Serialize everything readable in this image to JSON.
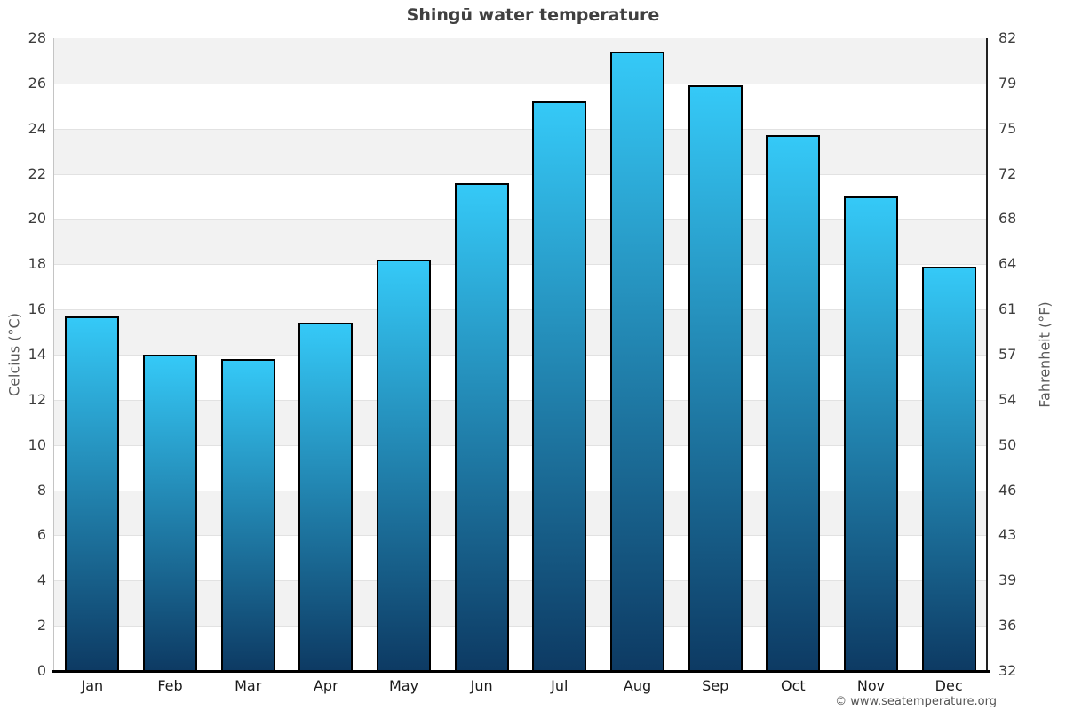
{
  "page": {
    "footer": "© www.seatemperature.org"
  },
  "chart_data": {
    "type": "bar",
    "title": "Shingū water temperature",
    "categories": [
      "Jan",
      "Feb",
      "Mar",
      "Apr",
      "May",
      "Jun",
      "Jul",
      "Aug",
      "Sep",
      "Oct",
      "Nov",
      "Dec"
    ],
    "values": [
      15.7,
      14.0,
      13.8,
      15.4,
      18.2,
      21.6,
      25.2,
      27.4,
      25.9,
      23.7,
      21.0,
      17.9
    ],
    "ylabel_left": "Celcius (°C)",
    "ylabel_right": "Fahrenheit (°F)",
    "ylim": [
      0,
      28
    ],
    "celsius_ticks": [
      28,
      26,
      24,
      22,
      20,
      18,
      16,
      14,
      12,
      10,
      8,
      6,
      4,
      2,
      0
    ],
    "fahrenheit_tick_labels": [
      "82",
      "79",
      "75",
      "72",
      "68",
      "64",
      "61",
      "57",
      "54",
      "50",
      "46",
      "43",
      "39",
      "36",
      "32"
    ],
    "legend": null,
    "grid": "alternating horizontal bands every 2 degrees",
    "colors": {
      "bar_gradient_top": "#35c9f7",
      "bar_gradient_bottom": "#0d3a63",
      "bar_border": "#000000",
      "band_gray": "#f2f2f2",
      "band_white": "#ffffff",
      "gridline": "#e2e2e2",
      "axis_left": "#c4c4c4",
      "axis_right": "#222222",
      "axis_bottom": "#000000",
      "title_text": "#404040",
      "tick_text": "#3d3d3d",
      "axis_label_text": "#5a5a5a",
      "footer_text": "#555555"
    }
  }
}
